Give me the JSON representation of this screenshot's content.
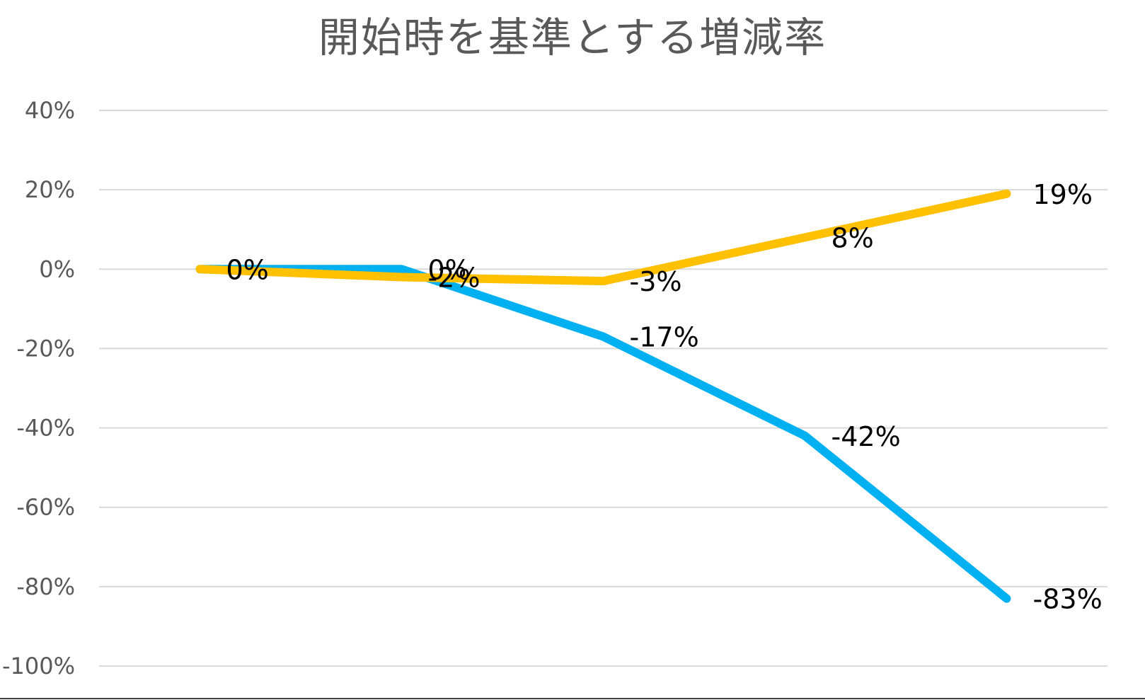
{
  "chart_data": {
    "type": "line",
    "title": "開始時を基準とする増減率",
    "xlabel": "",
    "ylabel": "",
    "ylim": [
      -1.0,
      0.4
    ],
    "y_ticks": [
      0.4,
      0.2,
      0.0,
      -0.2,
      -0.4,
      -0.6,
      -0.8,
      -1.0
    ],
    "y_tick_labels": [
      "40%",
      "20%",
      "0%",
      "-20%",
      "-40%",
      "-60%",
      "-80%",
      "-100%"
    ],
    "grid": true,
    "legend": "none",
    "point_count": 5,
    "series": [
      {
        "color": "#00b0f0",
        "values": [
          0.0,
          0.0,
          -0.17,
          -0.42,
          -0.83
        ],
        "labels": [
          "0%",
          "0%",
          "-17%",
          "-42%",
          "-83%"
        ]
      },
      {
        "color": "#ffc000",
        "values": [
          0.0,
          -0.02,
          -0.03,
          0.08,
          0.19
        ],
        "labels": [
          "0%",
          "-2%",
          "-3%",
          "8%",
          "19%"
        ]
      }
    ]
  }
}
